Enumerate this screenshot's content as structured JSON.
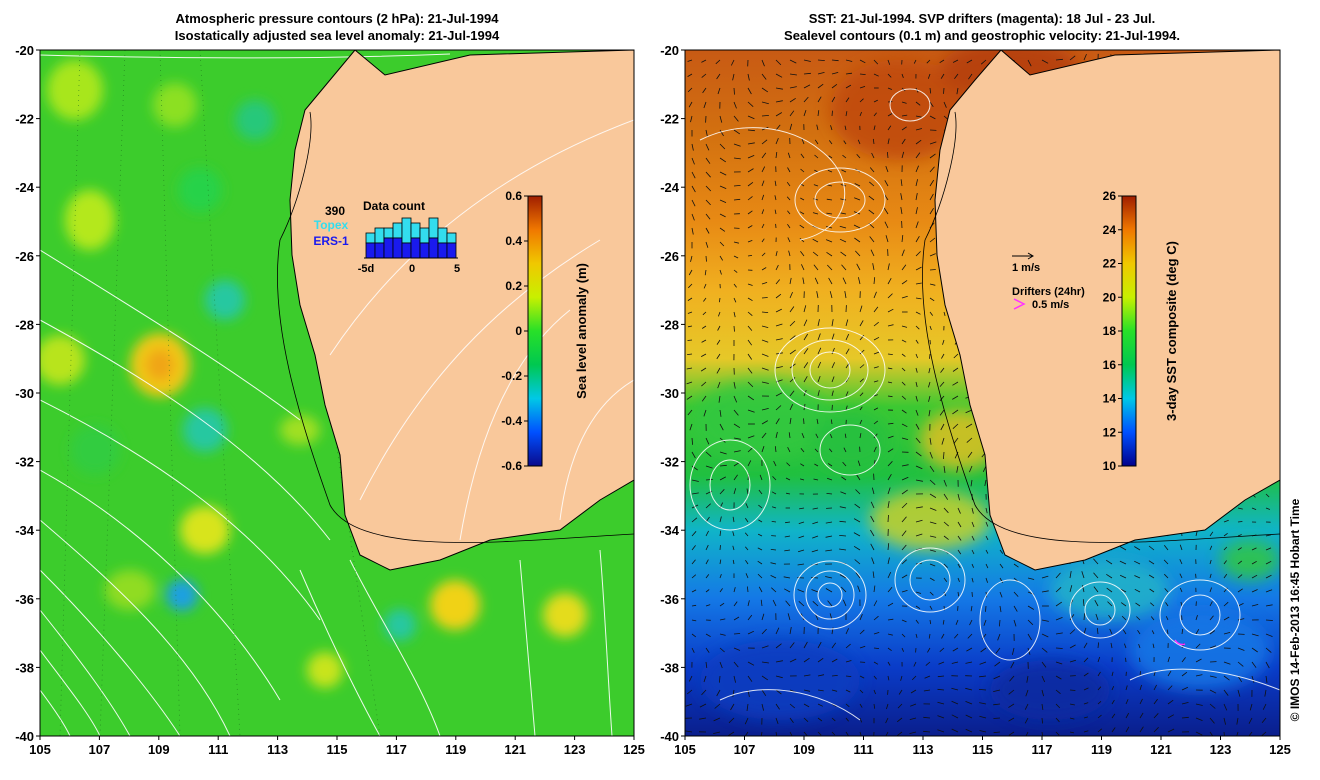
{
  "left_panel": {
    "title_line1": "Atmospheric pressure contours (2 hPa): 21-Jul-1994",
    "title_line2": "Isostatically adjusted sea level anomaly: 21-Jul-1994",
    "colorbar": {
      "label": "Sea level anomaly (m)",
      "ticks": [
        "0.6",
        "0.4",
        "0.2",
        "0",
        "-0.2",
        "-0.4",
        "-0.6"
      ],
      "range": [
        -0.6,
        0.6
      ],
      "colors": [
        "#0a0a8c",
        "#0050ff",
        "#00c8e6",
        "#00c850",
        "#28e028",
        "#c8f000",
        "#f0c800",
        "#f07800",
        "#a01e00"
      ]
    },
    "inset": {
      "title": "Data count",
      "count": "390",
      "topex_label": "Topex",
      "ers_label": "ERS-1",
      "x_ticks": [
        "-5d",
        "0",
        "5"
      ],
      "topex_values": [
        5,
        6,
        6,
        7,
        8,
        7,
        6,
        8,
        6,
        5
      ],
      "ers_values": [
        3,
        3,
        4,
        4,
        3,
        4,
        3,
        4,
        3,
        3
      ],
      "topex_color": "#33ddee",
      "ers_color": "#1a1aee"
    }
  },
  "right_panel": {
    "title_line1": "SST: 21-Jul-1994. SVP drifters (magenta): 18 Jul - 23 Jul.",
    "title_line2": "Sealevel contours (0.1 m) and geostrophic velocity: 21-Jul-1994.",
    "colorbar": {
      "label": "3-day SST composite (deg C)",
      "ticks": [
        "26",
        "24",
        "22",
        "20",
        "18",
        "16",
        "14",
        "12",
        "10"
      ],
      "range": [
        10,
        26
      ],
      "colors": [
        "#00008c",
        "#0050ff",
        "#00c8e6",
        "#00c850",
        "#28e028",
        "#c8f000",
        "#f0c800",
        "#f07800",
        "#a01e00"
      ]
    },
    "legend": {
      "velocity_label": "1 m/s",
      "drifters_label": "Drifters (24hr)",
      "drifters_speed": "0.5 m/s",
      "drifter_color": "#ff33ff"
    }
  },
  "axes": {
    "lat_ticks": [
      "-20",
      "-22",
      "-24",
      "-26",
      "-28",
      "-30",
      "-32",
      "-34",
      "-36",
      "-38",
      "-40"
    ],
    "lon_ticks": [
      "105",
      "107",
      "109",
      "111",
      "113",
      "115",
      "117",
      "119",
      "121",
      "123",
      "125"
    ]
  },
  "land_color": "#f9c89b",
  "credit": "© IMOS 14-Feb-2013 16:45 Hobart Time"
}
